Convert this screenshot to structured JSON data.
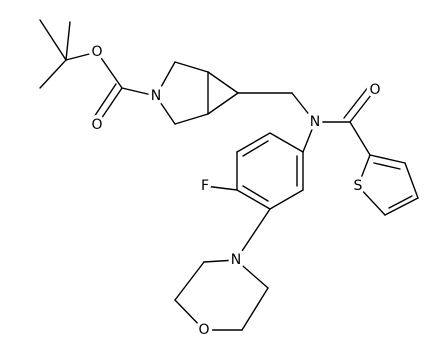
{
  "atoms": [
    "O",
    "N",
    "O",
    "N",
    "O",
    "S",
    "F",
    "N",
    "O"
  ]
}
